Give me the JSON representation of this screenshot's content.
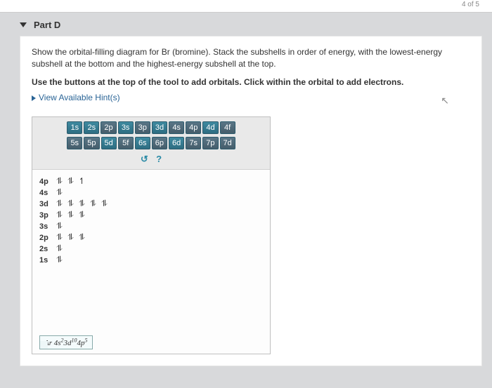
{
  "topStrip": "4 of 5",
  "part": {
    "label": "Part D"
  },
  "instruction": "Show the orbital-filling diagram for Br (bromine). Stack the subshells in order of energy, with the lowest-energy subshell at the bottom and the highest-energy subshell at the top.",
  "instructionBold": "Use the buttons at the top of the tool to add orbitals. Click within the orbital to add electrons.",
  "hints": {
    "label": "View Available Hint(s)"
  },
  "orbitals": {
    "row1": [
      "1s",
      "2s",
      "2p",
      "3s",
      "3p",
      "3d",
      "4s",
      "4p",
      "4d",
      "4f"
    ],
    "row2": [
      "5s",
      "5p",
      "5d",
      "5f",
      "6s",
      "6p",
      "6d",
      "7s",
      "7p",
      "7d"
    ],
    "row1Styles": [
      "teal",
      "teal",
      "slate",
      "teal",
      "slate",
      "teal",
      "slate",
      "slate",
      "teal",
      "slate"
    ],
    "row2Styles": [
      "slate",
      "slate",
      "teal",
      "slate",
      "teal",
      "slate",
      "teal",
      "slate",
      "slate",
      "slate"
    ]
  },
  "controls": {
    "undo": "↺",
    "help": "?"
  },
  "shells": [
    {
      "label": "4p",
      "boxes": [
        "⥮",
        "⥮",
        "↿"
      ]
    },
    {
      "label": "4s",
      "boxes": [
        "⥮"
      ]
    },
    {
      "label": "3d",
      "boxes": [
        "⥮",
        "⥮",
        "⥮",
        "⥮",
        "⥮"
      ]
    },
    {
      "label": "3p",
      "boxes": [
        "⥮",
        "⥮",
        "⥮"
      ]
    },
    {
      "label": "3s",
      "boxes": [
        "⥮"
      ]
    },
    {
      "label": "2p",
      "boxes": [
        "⥮",
        "⥮",
        "⥮"
      ]
    },
    {
      "label": "2s",
      "boxes": [
        "⥮"
      ]
    },
    {
      "label": "1s",
      "boxes": [
        "⥮"
      ]
    }
  ],
  "result": {
    "prefix": "Ar",
    "config_html": "4s<sup>2</sup>3d<sup>10</sup>4p<sup>5</sup>"
  },
  "colors": {
    "pageBg": "#d8d9db",
    "cardBg": "#ffffff",
    "link": "#2a6496",
    "tealBtn": "#2d6d82",
    "slateBtn": "#455d6b"
  }
}
